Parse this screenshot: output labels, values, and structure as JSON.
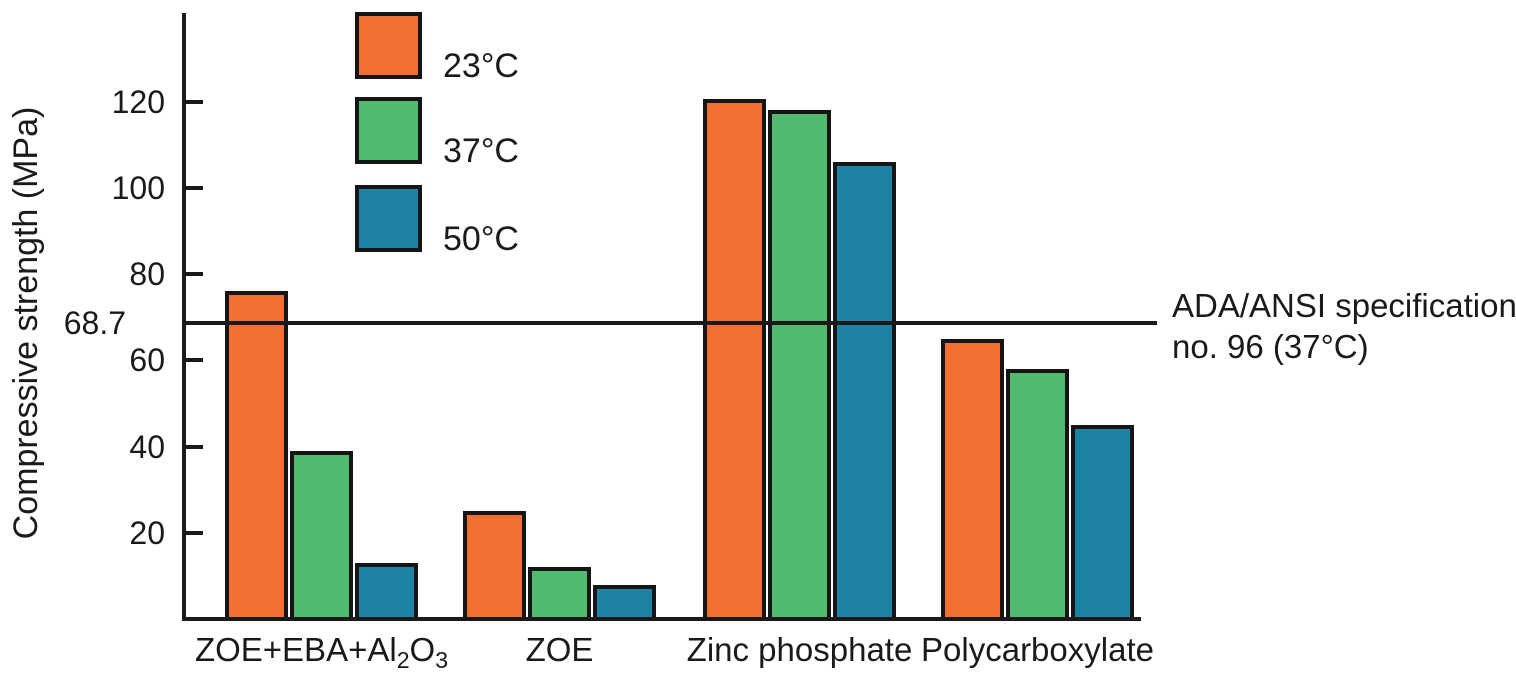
{
  "figure": {
    "background": "#ffffff",
    "axis_color": "#1a1a1a",
    "bar_border_color": "#151515"
  },
  "chart_data": {
    "type": "bar",
    "title": "",
    "xlabel": "",
    "ylabel": "Compressive strength (MPa)",
    "ylim": [
      0,
      140
    ],
    "yticks": [
      20,
      40,
      60,
      80,
      100,
      120
    ],
    "grid": false,
    "legend_position": "upper-left-inside",
    "categories": [
      "ZOE+EBA+Al2O3",
      "ZOE",
      "Zinc phosphate",
      "Polycarboxylate"
    ],
    "categories_rich": [
      [
        {
          "t": "ZOE+EBA+Al"
        },
        {
          "t": "2",
          "sub": true
        },
        {
          "t": "O"
        },
        {
          "t": "3",
          "sub": true
        }
      ],
      [
        {
          "t": "ZOE"
        }
      ],
      [
        {
          "t": "Zinc phosphate"
        }
      ],
      [
        {
          "t": "Polycarboxylate"
        }
      ]
    ],
    "series": [
      {
        "name": "23°C",
        "color": "#F37032",
        "values": [
          76,
          25,
          120.5,
          65
        ]
      },
      {
        "name": "37°C",
        "color": "#52BA6E",
        "values": [
          39,
          12,
          118,
          58
        ]
      },
      {
        "name": "50°C",
        "color": "#1E82A5",
        "values": [
          13,
          8,
          106,
          45
        ]
      }
    ],
    "reference_line": {
      "value": 68.7,
      "label": "68.7",
      "annotation_line1": "ADA/ANSI specification",
      "annotation_line2": "no. 96 (37°C)"
    }
  }
}
